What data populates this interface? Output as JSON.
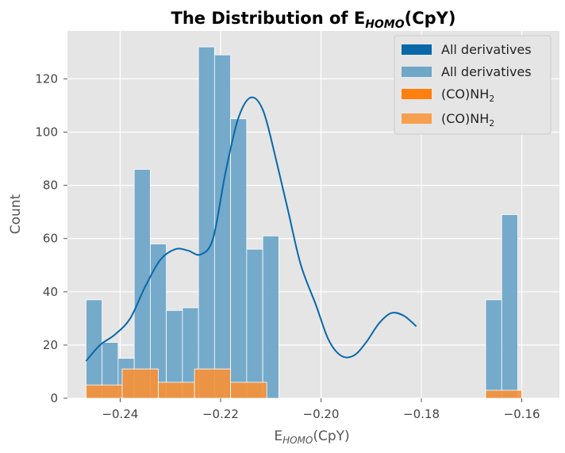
{
  "chart_data": {
    "type": "bar",
    "title_main": "The Distribution of E",
    "title_sub": "HOMO",
    "title_tail": "(CpY)",
    "xlabel_main": "E",
    "xlabel_sub": "HOMO",
    "xlabel_tail": "(CpY)",
    "ylabel": "Count",
    "xlim": [
      -0.2505,
      -0.1525
    ],
    "ylim": [
      0,
      138
    ],
    "xticks": [
      -0.24,
      -0.22,
      -0.2,
      -0.18,
      -0.16
    ],
    "xtick_labels": [
      "−0.24",
      "−0.22",
      "−0.20",
      "−0.18",
      "−0.16"
    ],
    "yticks": [
      0,
      20,
      40,
      60,
      80,
      100,
      120
    ],
    "ytick_labels": [
      "0",
      "20",
      "40",
      "60",
      "80",
      "100",
      "120"
    ],
    "grid": true,
    "legend_position": "top-right",
    "legend": [
      {
        "label": "All derivatives",
        "label_sub": "",
        "color": "#0868a8"
      },
      {
        "label": "All derivatives",
        "label_sub": "",
        "color": "#6fa7c8"
      },
      {
        "label": "(CO)NH",
        "label_sub": "2",
        "color": "#ff7f0e"
      },
      {
        "label": "(CO)NH",
        "label_sub": "2",
        "color": "#f6a04f"
      }
    ],
    "series": [
      {
        "name": "All derivatives",
        "color": "#6fa7c8",
        "bins": [
          {
            "x0": -0.2468,
            "x1": -0.2436,
            "count": 37
          },
          {
            "x0": -0.2436,
            "x1": -0.2404,
            "count": 21
          },
          {
            "x0": -0.2404,
            "x1": -0.2372,
            "count": 15
          },
          {
            "x0": -0.2372,
            "x1": -0.234,
            "count": 86
          },
          {
            "x0": -0.234,
            "x1": -0.2308,
            "count": 58
          },
          {
            "x0": -0.2308,
            "x1": -0.2276,
            "count": 33
          },
          {
            "x0": -0.2276,
            "x1": -0.2244,
            "count": 34
          },
          {
            "x0": -0.2244,
            "x1": -0.2212,
            "count": 132
          },
          {
            "x0": -0.2212,
            "x1": -0.218,
            "count": 129
          },
          {
            "x0": -0.218,
            "x1": -0.2148,
            "count": 105
          },
          {
            "x0": -0.2148,
            "x1": -0.2116,
            "count": 56
          },
          {
            "x0": -0.2116,
            "x1": -0.2084,
            "count": 61
          },
          {
            "x0": -0.1672,
            "x1": -0.164,
            "count": 37
          },
          {
            "x0": -0.164,
            "x1": -0.1608,
            "count": 69
          }
        ]
      },
      {
        "name": "(CO)NH2",
        "color": "#f6923a",
        "bins": [
          {
            "x0": -0.2468,
            "x1": -0.2396,
            "count": 5
          },
          {
            "x0": -0.2396,
            "x1": -0.2324,
            "count": 11
          },
          {
            "x0": -0.2324,
            "x1": -0.2252,
            "count": 6
          },
          {
            "x0": -0.2252,
            "x1": -0.218,
            "count": 11
          },
          {
            "x0": -0.218,
            "x1": -0.2108,
            "count": 6
          },
          {
            "x0": -0.1672,
            "x1": -0.16,
            "count": 3
          }
        ]
      }
    ],
    "kde": {
      "name": "All derivatives",
      "color": "#0868a8",
      "points": [
        [
          -0.2468,
          14
        ],
        [
          -0.244,
          20
        ],
        [
          -0.241,
          24
        ],
        [
          -0.238,
          30
        ],
        [
          -0.235,
          42
        ],
        [
          -0.232,
          52
        ],
        [
          -0.229,
          56
        ],
        [
          -0.2265,
          55.5
        ],
        [
          -0.224,
          54
        ],
        [
          -0.2215,
          60
        ],
        [
          -0.219,
          85
        ],
        [
          -0.2165,
          105
        ],
        [
          -0.214,
          113
        ],
        [
          -0.2115,
          108
        ],
        [
          -0.209,
          90
        ],
        [
          -0.2065,
          70
        ],
        [
          -0.204,
          50
        ],
        [
          -0.201,
          35
        ],
        [
          -0.1985,
          22
        ],
        [
          -0.196,
          16
        ],
        [
          -0.1935,
          16
        ],
        [
          -0.191,
          21
        ],
        [
          -0.1885,
          28
        ],
        [
          -0.186,
          32
        ],
        [
          -0.1835,
          31
        ],
        [
          -0.181,
          27
        ]
      ]
    }
  }
}
